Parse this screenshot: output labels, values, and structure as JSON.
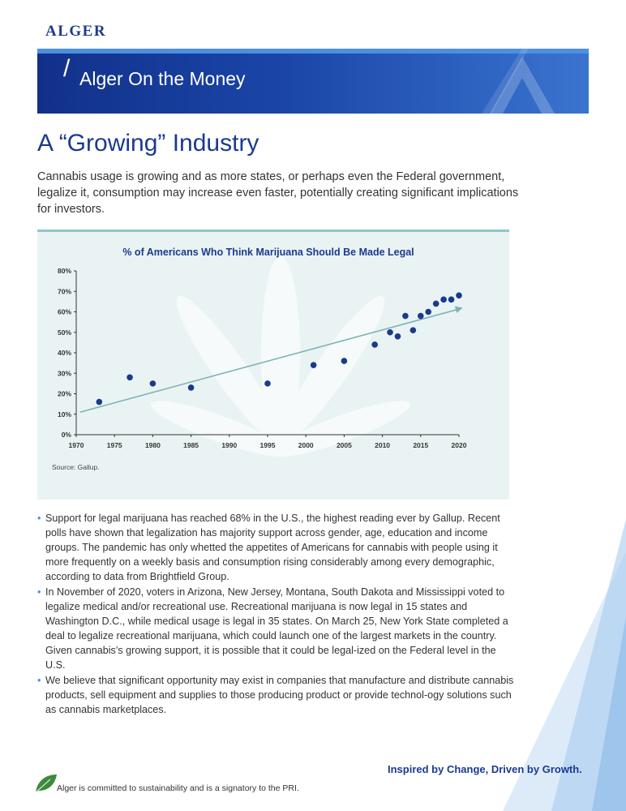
{
  "header": {
    "logo": "ALGER",
    "banner_slash": "/",
    "banner_title": "Alger On the Money"
  },
  "article": {
    "headline": "A “Growing” Industry",
    "intro": "Cannabis usage is growing and as more states, or perhaps even the Federal government, legalize it, consumption may increase even faster, potentially creating significant implications for investors."
  },
  "chart": {
    "source": "Source: Gallup."
  },
  "chart_data": {
    "type": "scatter",
    "title": "% of Americans Who Think Marijuana Should Be Made Legal",
    "xlabel": "",
    "ylabel": "",
    "xlim": [
      1970,
      2020
    ],
    "ylim": [
      0,
      80
    ],
    "x_ticks": [
      "1970",
      "1975",
      "1980",
      "1985",
      "1990",
      "1995",
      "2000",
      "2005",
      "2010",
      "2015",
      "2020"
    ],
    "y_ticks": [
      "0%",
      "10%",
      "20%",
      "30%",
      "40%",
      "50%",
      "60%",
      "70%",
      "80%"
    ],
    "grid": false,
    "points": [
      {
        "x": 1973,
        "y": 16
      },
      {
        "x": 1977,
        "y": 28
      },
      {
        "x": 1980,
        "y": 25
      },
      {
        "x": 1985,
        "y": 23
      },
      {
        "x": 1995,
        "y": 25
      },
      {
        "x": 2001,
        "y": 34
      },
      {
        "x": 2005,
        "y": 36
      },
      {
        "x": 2009,
        "y": 44
      },
      {
        "x": 2011,
        "y": 50
      },
      {
        "x": 2012,
        "y": 48
      },
      {
        "x": 2013,
        "y": 58
      },
      {
        "x": 2014,
        "y": 51
      },
      {
        "x": 2015,
        "y": 58
      },
      {
        "x": 2016,
        "y": 60
      },
      {
        "x": 2017,
        "y": 64
      },
      {
        "x": 2018,
        "y": 66
      },
      {
        "x": 2019,
        "y": 66
      },
      {
        "x": 2020,
        "y": 68
      }
    ],
    "trendline": {
      "x": [
        1970.5,
        2020.5
      ],
      "y": [
        11,
        62
      ]
    },
    "colors": {
      "points": "#1a3a8a",
      "trendline": "#7fb3b6",
      "axis": "#333333"
    }
  },
  "bullets": [
    "Support for legal marijuana has reached 68% in the U.S., the highest reading ever by Gallup. Recent polls have shown that legalization has majority support across gender, age, education and income groups. The pandemic has only whetted the appetites of Americans for cannabis with people using it more frequently on a weekly basis and consumption rising considerably among every demographic, according to data from Brightfield Group.",
    "In November of 2020, voters in Arizona, New Jersey, Montana, South Dakota and Mississippi voted to legalize medical and/or recreational use. Recreational marijuana is now legal in 15 states and Washington D.C., while medical usage is legal in 35 states. On March 25, New York State completed a deal to legalize recreational marijuana, which could launch one of the largest markets in the country. Given cannabis’s growing support, it is possible that it could be legal-ized on the Federal level in the U.S.",
    "We believe that significant opportunity may exist in companies that manufacture and distribute cannabis products, sell equipment and supplies to those producing product or provide technol-ogy solutions such as cannabis marketplaces."
  ],
  "footer": {
    "tagline": "Inspired by Change, Driven by Growth.",
    "sustainability_note": "Alger is committed to sustainability and is a signatory to the PRI."
  },
  "colors": {
    "brand_navy": "#1b3a8f",
    "banner_light": "#4d8fe0",
    "chart_bg": "#eaf3f3",
    "teal_rule": "#8fc7c9"
  }
}
